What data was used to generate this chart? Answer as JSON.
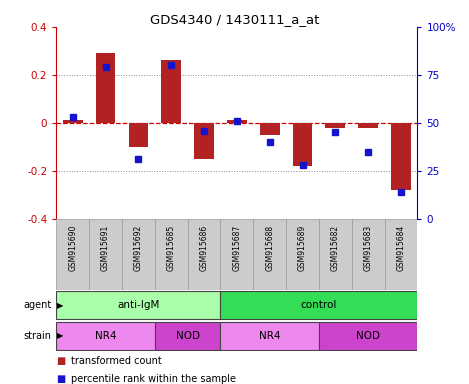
{
  "title": "GDS4340 / 1430111_a_at",
  "samples": [
    "GSM915690",
    "GSM915691",
    "GSM915692",
    "GSM915685",
    "GSM915686",
    "GSM915687",
    "GSM915688",
    "GSM915689",
    "GSM915682",
    "GSM915683",
    "GSM915684"
  ],
  "transformed_count": [
    0.01,
    0.29,
    -0.1,
    0.26,
    -0.15,
    0.01,
    -0.05,
    -0.18,
    -0.02,
    -0.02,
    -0.28
  ],
  "percentile_rank": [
    53,
    79,
    31,
    80,
    46,
    51,
    40,
    28,
    45,
    35,
    14
  ],
  "ylim_left": [
    -0.4,
    0.4
  ],
  "ylim_right": [
    0,
    100
  ],
  "yticks_left": [
    -0.4,
    -0.2,
    0.0,
    0.2,
    0.4
  ],
  "yticks_right": [
    0,
    25,
    50,
    75,
    100
  ],
  "bar_color": "#b22222",
  "dot_color": "#1414cc",
  "agent_groups": [
    {
      "label": "anti-IgM",
      "start": 0,
      "end": 5,
      "color": "#aaffaa"
    },
    {
      "label": "control",
      "start": 5,
      "end": 11,
      "color": "#33dd55"
    }
  ],
  "strain_groups": [
    {
      "label": "NR4",
      "start": 0,
      "end": 3,
      "color": "#ee88ee"
    },
    {
      "label": "NOD",
      "start": 3,
      "end": 5,
      "color": "#cc44cc"
    },
    {
      "label": "NR4",
      "start": 5,
      "end": 8,
      "color": "#ee88ee"
    },
    {
      "label": "NOD",
      "start": 8,
      "end": 11,
      "color": "#cc44cc"
    }
  ],
  "legend_items": [
    {
      "label": "transformed count",
      "color": "#b22222",
      "marker": "s"
    },
    {
      "label": "percentile rank within the sample",
      "color": "#1414cc",
      "marker": "s"
    }
  ],
  "dotted_line_color": "#888888",
  "zero_line_color": "#cc0000",
  "background_chart": "#ffffff",
  "background_labels": "#cccccc",
  "label_color_left": "#cc0000",
  "label_color_right": "#0000cc"
}
